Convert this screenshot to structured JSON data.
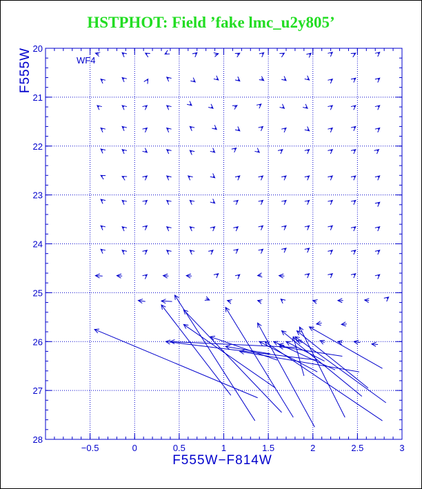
{
  "page": {
    "title": "HSTPHOT: Field ’fake lmc_u2y805’",
    "panel_label": "WF4"
  },
  "colors": {
    "title": "#22dd22",
    "axes": "#0000cc",
    "background": "#ffffff",
    "grid": "#0000cc"
  },
  "chart_data": {
    "type": "scatter",
    "title": "HSTPHOT: Field ’fake lmc_u2y805’",
    "xlabel": "F555W−F814W",
    "ylabel": "F555W",
    "xlim": [
      -1.0,
      3.0
    ],
    "ylim": [
      28,
      20
    ],
    "y_inverted": true,
    "grid": true,
    "grid_style": "dashed",
    "panel_label": "WF4",
    "x_ticks": [
      "−0.5",
      "0",
      "0.5",
      "1",
      "1.5",
      "2",
      "2.5",
      "3"
    ],
    "x_tick_values": [
      -0.5,
      0,
      0.5,
      1,
      1.5,
      2,
      2.5,
      3
    ],
    "y_ticks": [
      "20",
      "21",
      "22",
      "23",
      "24",
      "25",
      "26",
      "27",
      "28"
    ],
    "y_tick_values": [
      20,
      21,
      22,
      23,
      24,
      25,
      26,
      27,
      28
    ],
    "x_minor_step": 0.1,
    "y_minor_step": 0.2,
    "series": [
      {
        "marker": "arrow",
        "description_of_values": "each arrow starts at the recovered (color, magnitude) and points toward the input value",
        "short_arrows": [
          [
            -0.4,
            20.12,
            -0.44,
            20.1
          ],
          [
            -0.12,
            20.12,
            -0.14,
            20.09
          ],
          [
            0.14,
            20.12,
            0.12,
            20.1
          ],
          [
            0.36,
            20.1,
            0.34,
            20.12
          ],
          [
            0.68,
            20.12,
            0.7,
            20.09
          ],
          [
            0.9,
            20.13,
            0.94,
            20.11
          ],
          [
            1.15,
            20.13,
            1.18,
            20.1
          ],
          [
            1.43,
            20.12,
            1.45,
            20.09
          ],
          [
            1.66,
            20.12,
            1.68,
            20.1
          ],
          [
            1.96,
            20.13,
            1.98,
            20.1
          ],
          [
            2.2,
            20.11,
            2.22,
            20.08
          ],
          [
            2.46,
            20.12,
            2.48,
            20.1
          ],
          [
            2.73,
            20.11,
            2.75,
            20.08
          ],
          [
            -0.36,
            20.66,
            -0.38,
            20.63
          ],
          [
            -0.12,
            20.63,
            -0.14,
            20.6
          ],
          [
            0.14,
            20.66,
            0.15,
            20.63
          ],
          [
            0.38,
            20.62,
            0.36,
            20.59
          ],
          [
            0.66,
            20.66,
            0.68,
            20.69
          ],
          [
            0.92,
            20.62,
            0.94,
            20.65
          ],
          [
            1.16,
            20.64,
            1.18,
            20.67
          ],
          [
            1.42,
            20.62,
            1.45,
            20.66
          ],
          [
            1.68,
            20.63,
            1.7,
            20.66
          ],
          [
            1.94,
            20.62,
            1.96,
            20.65
          ],
          [
            2.2,
            20.66,
            2.22,
            20.63
          ],
          [
            2.46,
            20.64,
            2.48,
            20.61
          ],
          [
            2.73,
            20.64,
            2.75,
            20.61
          ],
          [
            -0.4,
            21.2,
            -0.42,
            21.17
          ],
          [
            -0.12,
            21.2,
            -0.14,
            21.17
          ],
          [
            0.12,
            21.2,
            0.14,
            21.17
          ],
          [
            0.38,
            21.2,
            0.36,
            21.17
          ],
          [
            0.62,
            21.14,
            0.64,
            21.17
          ],
          [
            0.86,
            21.2,
            0.88,
            21.23
          ],
          [
            1.12,
            21.2,
            1.15,
            21.17
          ],
          [
            1.4,
            21.17,
            1.42,
            21.14
          ],
          [
            1.66,
            21.2,
            1.68,
            21.23
          ],
          [
            1.92,
            21.2,
            1.94,
            21.23
          ],
          [
            2.2,
            21.2,
            2.22,
            21.17
          ],
          [
            2.46,
            21.2,
            2.48,
            21.17
          ],
          [
            2.73,
            21.2,
            2.75,
            21.17
          ],
          [
            -0.36,
            21.66,
            -0.38,
            21.63
          ],
          [
            -0.12,
            21.63,
            -0.14,
            21.6
          ],
          [
            0.12,
            21.66,
            0.14,
            21.63
          ],
          [
            0.38,
            21.66,
            0.36,
            21.63
          ],
          [
            0.64,
            21.63,
            0.62,
            21.6
          ],
          [
            0.9,
            21.63,
            0.92,
            21.66
          ],
          [
            1.16,
            21.66,
            1.18,
            21.69
          ],
          [
            1.42,
            21.63,
            1.44,
            21.6
          ],
          [
            1.68,
            21.66,
            1.7,
            21.63
          ],
          [
            1.94,
            21.66,
            1.96,
            21.69
          ],
          [
            2.2,
            21.66,
            2.22,
            21.63
          ],
          [
            2.46,
            21.63,
            2.48,
            21.6
          ],
          [
            2.73,
            21.66,
            2.75,
            21.63
          ],
          [
            -0.36,
            22.09,
            -0.38,
            22.06
          ],
          [
            -0.12,
            22.1,
            -0.14,
            22.07
          ],
          [
            0.12,
            22.1,
            0.14,
            22.13
          ],
          [
            0.38,
            22.1,
            0.36,
            22.07
          ],
          [
            0.64,
            22.12,
            0.62,
            22.09
          ],
          [
            0.88,
            22.1,
            0.9,
            22.13
          ],
          [
            1.12,
            22.07,
            1.14,
            22.04
          ],
          [
            1.38,
            22.1,
            1.4,
            22.13
          ],
          [
            1.64,
            22.1,
            1.66,
            22.07
          ],
          [
            1.94,
            22.1,
            1.96,
            22.07
          ],
          [
            2.2,
            22.1,
            2.22,
            22.07
          ],
          [
            2.46,
            22.1,
            2.48,
            22.07
          ],
          [
            2.72,
            22.1,
            2.74,
            22.07
          ],
          [
            -0.36,
            22.62,
            -0.38,
            22.6
          ],
          [
            -0.12,
            22.64,
            -0.14,
            22.62
          ],
          [
            0.12,
            22.64,
            0.14,
            22.61
          ],
          [
            0.38,
            22.64,
            0.36,
            22.61
          ],
          [
            0.62,
            22.64,
            0.6,
            22.61
          ],
          [
            0.88,
            22.62,
            0.9,
            22.65
          ],
          [
            1.16,
            22.64,
            1.18,
            22.61
          ],
          [
            1.42,
            22.64,
            1.44,
            22.61
          ],
          [
            1.68,
            22.64,
            1.7,
            22.61
          ],
          [
            1.94,
            22.64,
            1.96,
            22.61
          ],
          [
            2.2,
            22.64,
            2.22,
            22.61
          ],
          [
            2.46,
            22.64,
            2.48,
            22.61
          ],
          [
            2.73,
            22.64,
            2.75,
            22.61
          ],
          [
            -0.36,
            23.12,
            -0.38,
            23.09
          ],
          [
            -0.12,
            23.14,
            -0.14,
            23.11
          ],
          [
            0.12,
            23.14,
            0.14,
            23.11
          ],
          [
            0.38,
            23.14,
            0.36,
            23.11
          ],
          [
            0.64,
            23.14,
            0.62,
            23.11
          ],
          [
            0.88,
            23.14,
            0.9,
            23.17
          ],
          [
            1.14,
            23.14,
            1.16,
            23.11
          ],
          [
            1.42,
            23.14,
            1.44,
            23.11
          ],
          [
            1.68,
            23.14,
            1.7,
            23.11
          ],
          [
            1.94,
            23.14,
            1.96,
            23.11
          ],
          [
            2.2,
            23.14,
            2.22,
            23.11
          ],
          [
            2.46,
            23.14,
            2.48,
            23.11
          ],
          [
            2.73,
            23.18,
            2.75,
            23.15
          ],
          [
            -0.36,
            23.66,
            -0.38,
            23.63
          ],
          [
            -0.12,
            23.68,
            -0.14,
            23.65
          ],
          [
            0.12,
            23.66,
            0.14,
            23.63
          ],
          [
            0.38,
            23.68,
            0.36,
            23.65
          ],
          [
            0.64,
            23.68,
            0.62,
            23.65
          ],
          [
            0.88,
            23.68,
            0.9,
            23.65
          ],
          [
            1.14,
            23.68,
            1.16,
            23.65
          ],
          [
            1.42,
            23.66,
            1.44,
            23.63
          ],
          [
            1.68,
            23.66,
            1.7,
            23.63
          ],
          [
            1.94,
            23.66,
            1.96,
            23.63
          ],
          [
            2.2,
            23.66,
            2.22,
            23.63
          ],
          [
            2.46,
            23.68,
            2.48,
            23.65
          ],
          [
            2.73,
            23.68,
            2.75,
            23.65
          ],
          [
            -0.36,
            24.14,
            -0.38,
            24.11
          ],
          [
            -0.12,
            24.16,
            -0.14,
            24.13
          ],
          [
            0.12,
            24.16,
            0.14,
            24.13
          ],
          [
            0.38,
            24.16,
            0.36,
            24.13
          ],
          [
            0.64,
            24.16,
            0.62,
            24.13
          ],
          [
            0.86,
            24.16,
            0.88,
            24.13
          ],
          [
            1.14,
            24.14,
            1.16,
            24.11
          ],
          [
            1.42,
            24.14,
            1.44,
            24.11
          ],
          [
            1.68,
            24.12,
            1.7,
            24.09
          ],
          [
            1.94,
            24.12,
            1.96,
            24.09
          ],
          [
            2.2,
            24.16,
            2.22,
            24.13
          ],
          [
            2.46,
            24.16,
            2.48,
            24.13
          ],
          [
            2.73,
            24.16,
            2.75,
            24.13
          ],
          [
            -0.36,
            24.66,
            -0.44,
            24.65
          ],
          [
            -0.14,
            24.66,
            -0.2,
            24.65
          ],
          [
            0.12,
            24.66,
            0.14,
            24.63
          ],
          [
            0.38,
            24.66,
            0.32,
            24.65
          ],
          [
            0.64,
            24.66,
            0.58,
            24.65
          ],
          [
            0.92,
            24.64,
            0.94,
            24.61
          ],
          [
            1.16,
            24.66,
            1.18,
            24.63
          ],
          [
            1.42,
            24.64,
            1.38,
            24.65
          ],
          [
            1.68,
            24.66,
            1.62,
            24.65
          ],
          [
            1.94,
            24.64,
            1.96,
            24.61
          ],
          [
            2.2,
            24.64,
            2.22,
            24.61
          ],
          [
            2.46,
            24.64,
            2.48,
            24.61
          ],
          [
            2.73,
            24.66,
            2.75,
            24.63
          ],
          [
            0.12,
            25.18,
            0.04,
            25.16
          ],
          [
            0.42,
            25.18,
            0.3,
            25.17
          ],
          [
            0.8,
            25.12,
            0.84,
            25.15
          ],
          [
            1.08,
            25.18,
            1.04,
            25.16
          ],
          [
            1.42,
            25.18,
            1.38,
            25.16
          ],
          [
            1.66,
            25.16,
            1.64,
            25.13
          ],
          [
            2.04,
            25.18,
            2.0,
            25.16
          ],
          [
            2.34,
            25.16,
            2.28,
            25.16
          ],
          [
            2.63,
            25.16,
            2.58,
            25.15
          ],
          [
            2.83,
            25.12,
            2.85,
            25.09
          ],
          [
            2.1,
            25.62,
            2.04,
            25.64
          ],
          [
            2.38,
            25.64,
            2.32,
            25.65
          ],
          [
            2.53,
            26.02,
            2.46,
            26.0
          ],
          [
            2.73,
            26.06,
            2.66,
            26.05
          ],
          [
            2.33,
            26.02,
            2.28,
            26.0
          ],
          [
            1.88,
            26.02,
            1.82,
            25.98
          ],
          [
            2.13,
            26.02,
            2.08,
            25.98
          ],
          [
            1.68,
            26.08,
            1.62,
            26.06
          ]
        ],
        "long_arrows": [
          [
            1.38,
            27.15,
            -0.45,
            25.75
          ],
          [
            1.35,
            27.62,
            0.45,
            25.05
          ],
          [
            1.65,
            27.45,
            0.55,
            25.35
          ],
          [
            1.08,
            27.1,
            0.3,
            25.25
          ],
          [
            1.58,
            26.95,
            0.55,
            25.65
          ],
          [
            1.78,
            27.55,
            1.02,
            25.3
          ],
          [
            2.02,
            27.75,
            1.38,
            25.62
          ],
          [
            2.36,
            27.55,
            1.85,
            25.7
          ],
          [
            2.55,
            27.12,
            1.65,
            25.78
          ],
          [
            2.62,
            26.95,
            1.82,
            25.78
          ],
          [
            2.82,
            27.25,
            1.8,
            25.9
          ],
          [
            2.78,
            27.62,
            1.46,
            26.0
          ],
          [
            2.52,
            26.62,
            1.18,
            26.2
          ],
          [
            2.78,
            26.55,
            1.96,
            25.7
          ],
          [
            2.05,
            26.38,
            0.35,
            26.0
          ],
          [
            1.82,
            26.12,
            0.4,
            26.0
          ],
          [
            1.52,
            26.25,
            1.02,
            26.1
          ],
          [
            2.13,
            26.4,
            1.7,
            26.0
          ],
          [
            2.05,
            26.62,
            1.4,
            26.0
          ],
          [
            1.9,
            26.7,
            1.78,
            25.9
          ],
          [
            2.33,
            26.3,
            1.62,
            26.1
          ],
          [
            1.6,
            26.38,
            0.85,
            25.9
          ],
          [
            2.25,
            26.58,
            1.56,
            26.0
          ]
        ]
      }
    ]
  }
}
